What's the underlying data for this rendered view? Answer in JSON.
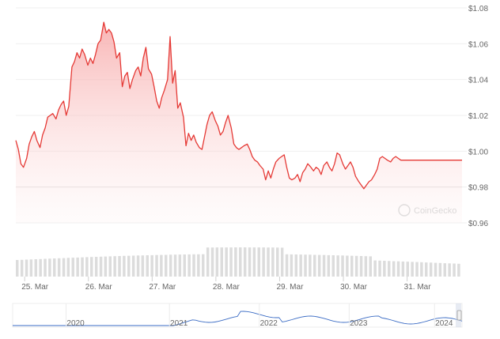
{
  "watermark": {
    "text": "CoinGecko"
  },
  "chart_data": {
    "type": "area",
    "y_tick_labels": [
      "$1.08",
      "$1.06",
      "$1.04",
      "$1.02",
      "$1.00",
      "$0.98",
      "$0.96"
    ],
    "y_tick_values": [
      1.08,
      1.06,
      1.04,
      1.02,
      1.0,
      0.98,
      0.96
    ],
    "ylim": [
      0.96,
      1.08
    ],
    "x_tick_labels": [
      "25. Mar",
      "26. Mar",
      "27. Mar",
      "28. Mar",
      "29. Mar",
      "30. Mar",
      "31. Mar"
    ],
    "x_tick_positions": [
      0.3,
      1.3,
      2.3,
      3.3,
      4.3,
      5.3,
      6.3
    ],
    "xlim": [
      0,
      7.0
    ],
    "reference_line": 0.98,
    "grid": true,
    "series": [
      {
        "x": [
          0.0,
          0.04,
          0.08,
          0.12,
          0.17,
          0.21,
          0.25,
          0.29,
          0.33,
          0.38,
          0.42,
          0.46,
          0.5,
          0.54,
          0.58,
          0.63,
          0.67,
          0.71,
          0.75,
          0.79,
          0.83,
          0.88,
          0.92,
          0.96,
          1.0,
          1.04,
          1.08,
          1.13,
          1.17,
          1.21,
          1.25,
          1.29,
          1.33,
          1.38,
          1.42,
          1.46,
          1.5,
          1.54,
          1.58,
          1.63,
          1.67,
          1.71,
          1.75,
          1.79,
          1.83,
          1.88,
          1.92,
          1.96,
          2.0,
          2.04,
          2.08,
          2.13,
          2.17,
          2.21,
          2.25,
          2.29,
          2.33,
          2.38,
          2.42,
          2.46,
          2.5,
          2.54,
          2.58,
          2.63,
          2.67,
          2.71,
          2.75,
          2.79,
          2.83,
          2.88,
          2.92,
          2.96,
          3.0,
          3.04,
          3.08,
          3.13,
          3.17,
          3.21,
          3.25,
          3.29,
          3.33,
          3.38,
          3.42,
          3.46,
          3.5,
          3.54,
          3.58,
          3.63,
          3.67,
          3.71,
          3.75,
          3.79,
          3.83,
          3.88,
          3.92,
          3.96,
          4.0,
          4.04,
          4.08,
          4.13,
          4.17,
          4.21,
          4.25,
          4.29,
          4.33,
          4.38,
          4.42,
          4.46,
          4.5,
          4.54,
          4.58,
          4.63,
          4.67,
          4.71,
          4.75,
          4.79,
          4.83,
          4.88,
          4.92,
          4.96,
          5.0,
          5.04,
          5.08,
          5.13,
          5.17,
          5.21,
          5.25,
          5.29,
          5.33,
          5.38,
          5.42,
          5.46,
          5.5,
          5.54,
          5.58,
          5.63,
          5.67,
          5.71,
          5.75,
          5.79,
          5.83,
          5.88,
          5.92,
          5.96,
          6.0,
          6.04,
          6.08,
          6.13,
          6.17,
          6.21,
          6.25,
          6.29,
          6.33,
          6.38,
          6.42,
          6.46,
          6.5,
          6.54,
          6.58,
          6.63,
          6.67,
          6.71,
          6.75,
          6.79,
          6.83,
          6.88,
          6.92,
          6.96,
          7.0
        ],
        "y": [
          1.006,
          1.001,
          0.993,
          0.991,
          0.996,
          1.004,
          1.008,
          1.011,
          1.006,
          1.002,
          1.009,
          1.013,
          1.019,
          1.02,
          1.021,
          1.018,
          1.023,
          1.026,
          1.028,
          1.02,
          1.025,
          1.047,
          1.05,
          1.055,
          1.052,
          1.057,
          1.054,
          1.048,
          1.052,
          1.049,
          1.054,
          1.06,
          1.062,
          1.072,
          1.066,
          1.068,
          1.066,
          1.061,
          1.052,
          1.055,
          1.036,
          1.042,
          1.044,
          1.035,
          1.04,
          1.045,
          1.047,
          1.042,
          1.052,
          1.058,
          1.046,
          1.043,
          1.036,
          1.028,
          1.024,
          1.03,
          1.034,
          1.04,
          1.064,
          1.038,
          1.045,
          1.024,
          1.027,
          1.019,
          1.003,
          1.01,
          1.006,
          1.009,
          1.005,
          1.002,
          1.001,
          1.008,
          1.015,
          1.02,
          1.022,
          1.017,
          1.014,
          1.009,
          1.011,
          1.016,
          1.02,
          1.013,
          1.004,
          1.002,
          1.001,
          1.002,
          1.003,
          1.004,
          1.001,
          0.997,
          0.995,
          0.994,
          0.992,
          0.99,
          0.984,
          0.989,
          0.985,
          0.99,
          0.994,
          0.996,
          0.997,
          0.998,
          0.991,
          0.985,
          0.984,
          0.985,
          0.987,
          0.983,
          0.988,
          0.99,
          0.993,
          0.991,
          0.989,
          0.991,
          0.99,
          0.987,
          0.992,
          0.994,
          0.991,
          0.989,
          0.993,
          0.999,
          0.998,
          0.993,
          0.99,
          0.992,
          0.994,
          0.991,
          0.986,
          0.983,
          0.981,
          0.979,
          0.981,
          0.983,
          0.984,
          0.987,
          0.99,
          0.996,
          0.997,
          0.996,
          0.995,
          0.994,
          0.996,
          0.997,
          0.996,
          0.995,
          0.995,
          0.995,
          0.995,
          0.995,
          0.995,
          0.995,
          0.995,
          0.995,
          0.995,
          0.995,
          0.995,
          0.995,
          0.995,
          0.995,
          0.995,
          0.995,
          0.995,
          0.995,
          0.995,
          0.995,
          0.995,
          0.995,
          0.995
        ]
      }
    ],
    "volume_bars": 96,
    "navigator": {
      "labels": [
        "2020",
        "2021",
        "2022",
        "2023",
        "2024"
      ],
      "label_positions": [
        0.14,
        0.37,
        0.57,
        0.77,
        0.96
      ]
    }
  }
}
